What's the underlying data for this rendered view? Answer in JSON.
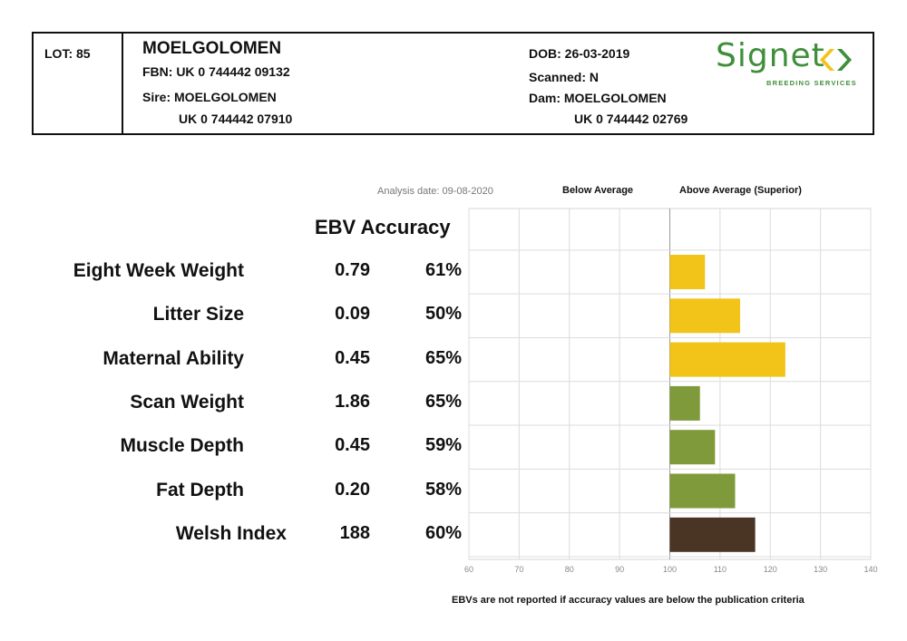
{
  "header": {
    "lot": "LOT: 85",
    "name": "MOELGOLOMEN",
    "fbn": "FBN: UK 0 744442 09132",
    "sire": "Sire: MOELGOLOMEN",
    "sire_id": "UK 0 744442 07910",
    "dob": "DOB: 26-03-2019",
    "scanned": "Scanned: N",
    "dam": "Dam: MOELGOLOMEN",
    "dam_id": "UK 0 744442 02769",
    "logo_text": "Signet",
    "logo_subtext": "BREEDING SERVICES"
  },
  "analysis_date": "Analysis date: 09-08-2020",
  "legend": {
    "below": "Below Average",
    "above": "Above Average (Superior)"
  },
  "column_header": "EBV Accuracy",
  "rows": [
    {
      "label": "Eight Week Weight",
      "ebv": "0.79",
      "accuracy": "61%"
    },
    {
      "label": "Litter Size",
      "ebv": "0.09",
      "accuracy": "50%"
    },
    {
      "label": "Maternal Ability",
      "ebv": "0.45",
      "accuracy": "65%"
    },
    {
      "label": "Scan Weight",
      "ebv": "1.86",
      "accuracy": "65%"
    },
    {
      "label": "Muscle Depth",
      "ebv": "0.45",
      "accuracy": "59%"
    },
    {
      "label": "Fat Depth",
      "ebv": "0.20",
      "accuracy": "58%"
    },
    {
      "label": "Welsh Index",
      "ebv": "188",
      "accuracy": "60%"
    }
  ],
  "footnote": "EBVs are not reported if accuracy values are below the publication criteria",
  "chart_data": {
    "type": "bar",
    "orientation": "horizontal",
    "baseline": 100,
    "xlim": [
      60,
      140
    ],
    "xticks": [
      "60",
      "70",
      "80",
      "90",
      "100",
      "110",
      "120",
      "130",
      "140"
    ],
    "categories": [
      "Eight Week Weight",
      "Litter Size",
      "Maternal Ability",
      "Scan Weight",
      "Muscle Depth",
      "Fat Depth",
      "Welsh Index"
    ],
    "values": [
      107,
      114,
      123,
      106,
      109,
      113,
      117
    ],
    "colors": [
      "#f2c318",
      "#f2c318",
      "#f2c318",
      "#7f9a3a",
      "#7f9a3a",
      "#7f9a3a",
      "#4a3424"
    ],
    "grid": true
  }
}
